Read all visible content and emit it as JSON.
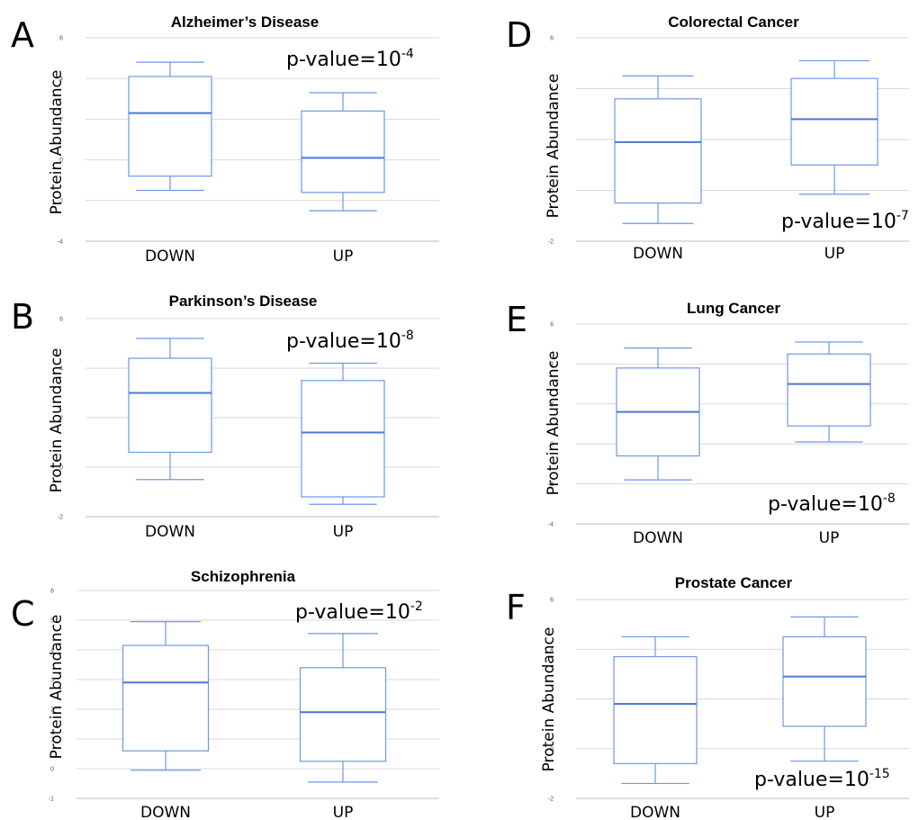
{
  "chart_data": [
    {
      "panel": "A",
      "type": "box",
      "title": "Alzheimer’s Disease",
      "ylabel": "Protein Abundance",
      "ylim": [
        -4,
        6
      ],
      "yticks": [
        -4,
        -2,
        0,
        2,
        4,
        6
      ],
      "categories": [
        "DOWN",
        "UP"
      ],
      "boxes": [
        {
          "category": "DOWN",
          "min": -1.5,
          "q1": -0.8,
          "median": 2.3,
          "q3": 4.1,
          "max": 4.8
        },
        {
          "category": "UP",
          "min": -2.5,
          "q1": -1.6,
          "median": 0.1,
          "q3": 2.4,
          "max": 3.3
        }
      ],
      "annotation": {
        "base": "p-value=10",
        "exp": "-4"
      }
    },
    {
      "panel": "B",
      "type": "box",
      "title": "Parkinson’s Disease",
      "ylabel": "Protein Abundance",
      "ylim": [
        -2,
        6
      ],
      "yticks": [
        -2,
        0,
        2,
        4,
        6
      ],
      "categories": [
        "DOWN",
        "UP"
      ],
      "boxes": [
        {
          "category": "DOWN",
          "min": -0.5,
          "q1": 0.6,
          "median": 3.0,
          "q3": 4.4,
          "max": 5.2
        },
        {
          "category": "UP",
          "min": -1.5,
          "q1": -1.2,
          "median": 1.4,
          "q3": 3.5,
          "max": 4.2
        }
      ],
      "annotation": {
        "base": "p-value=10",
        "exp": "-8"
      }
    },
    {
      "panel": "C",
      "type": "box",
      "title": "Schizophrenia",
      "ylabel": "Protein Abundance",
      "ylim": [
        -1,
        6
      ],
      "yticks": [
        -1,
        0,
        1,
        2,
        3,
        4,
        5,
        6
      ],
      "categories": [
        "DOWN",
        "UP"
      ],
      "boxes": [
        {
          "category": "DOWN",
          "min": -0.05,
          "q1": 0.6,
          "median": 2.9,
          "q3": 4.15,
          "max": 4.95
        },
        {
          "category": "UP",
          "min": -0.45,
          "q1": 0.25,
          "median": 1.9,
          "q3": 3.4,
          "max": 4.55
        }
      ],
      "annotation": {
        "base": "p-value=10",
        "exp": "-2"
      }
    },
    {
      "panel": "D",
      "type": "box",
      "title": "Colorectal Cancer",
      "ylabel": "Protein Abundance",
      "ylim": [
        -2,
        6
      ],
      "yticks": [
        -2,
        0,
        2,
        4,
        6
      ],
      "categories": [
        "DOWN",
        "UP"
      ],
      "boxes": [
        {
          "category": "DOWN",
          "min": -1.3,
          "q1": -0.5,
          "median": 1.9,
          "q3": 3.6,
          "max": 4.5
        },
        {
          "category": "UP",
          "min": -0.15,
          "q1": 1.0,
          "median": 2.8,
          "q3": 4.4,
          "max": 5.1
        }
      ],
      "annotation": {
        "base": "p-value=10",
        "exp": "-7"
      }
    },
    {
      "panel": "E",
      "type": "box",
      "title": "Lung Cancer",
      "ylabel": "Protein Abundance",
      "ylim": [
        -4,
        6
      ],
      "yticks": [
        -4,
        -2,
        0,
        2,
        4,
        6
      ],
      "categories": [
        "DOWN",
        "UP"
      ],
      "boxes": [
        {
          "category": "DOWN",
          "min": -1.8,
          "q1": -0.6,
          "median": 1.6,
          "q3": 3.8,
          "max": 4.8
        },
        {
          "category": "UP",
          "min": 0.1,
          "q1": 0.9,
          "median": 3.0,
          "q3": 4.5,
          "max": 5.1
        }
      ],
      "annotation": {
        "base": "p-value=10",
        "exp": "-8"
      }
    },
    {
      "panel": "F",
      "type": "box",
      "title": "Prostate Cancer",
      "ylabel": "Protein Abundance",
      "ylim": [
        -2,
        6
      ],
      "yticks": [
        -2,
        0,
        2,
        4,
        6
      ],
      "categories": [
        "DOWN",
        "UP"
      ],
      "boxes": [
        {
          "category": "DOWN",
          "min": -1.4,
          "q1": -0.6,
          "median": 1.8,
          "q3": 3.7,
          "max": 4.5
        },
        {
          "category": "UP",
          "min": -0.5,
          "q1": 0.9,
          "median": 2.9,
          "q3": 4.5,
          "max": 5.3
        }
      ],
      "annotation": {
        "base": "p-value=10",
        "exp": "-15"
      }
    }
  ]
}
